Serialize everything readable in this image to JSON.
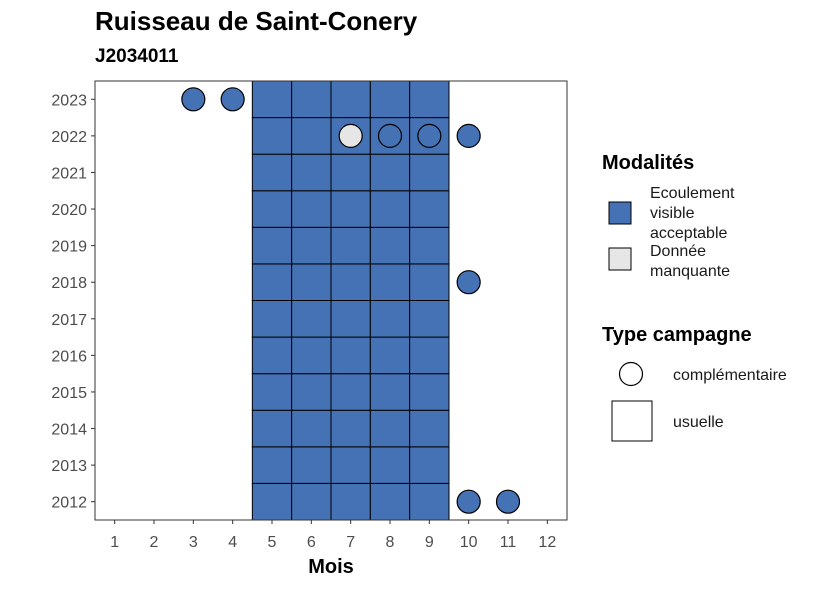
{
  "title": "Ruisseau de Saint-Conery",
  "subtitle": "J2034011",
  "chart_data": {
    "type": "heatmap",
    "xlabel": "Mois",
    "ylabel": "",
    "x_ticks": [
      1,
      2,
      3,
      4,
      5,
      6,
      7,
      8,
      9,
      10,
      11,
      12
    ],
    "y_ticks": [
      2012,
      2013,
      2014,
      2015,
      2016,
      2017,
      2018,
      2019,
      2020,
      2021,
      2022,
      2023
    ],
    "xlim": [
      0.5,
      12.5
    ],
    "ylim": [
      2011.5,
      2023.5
    ],
    "grid": false,
    "legend_position": "right",
    "colors": {
      "ecoulement": "#4472b4",
      "manquante": "#e6e6e6"
    },
    "usuelle": {
      "months": [
        5,
        6,
        7,
        8,
        9
      ],
      "years": [
        2012,
        2013,
        2014,
        2015,
        2016,
        2017,
        2018,
        2019,
        2020,
        2021,
        2022,
        2023
      ],
      "modalite": "Ecoulement visible acceptable"
    },
    "complementaire": [
      {
        "year": 2023,
        "month": 3,
        "modalite": "Ecoulement visible acceptable"
      },
      {
        "year": 2023,
        "month": 4,
        "modalite": "Ecoulement visible acceptable"
      },
      {
        "year": 2022,
        "month": 7,
        "modalite": "Donnée manquante"
      },
      {
        "year": 2022,
        "month": 8,
        "modalite": "Ecoulement visible acceptable"
      },
      {
        "year": 2022,
        "month": 9,
        "modalite": "Ecoulement visible acceptable"
      },
      {
        "year": 2022,
        "month": 10,
        "modalite": "Ecoulement visible acceptable"
      },
      {
        "year": 2018,
        "month": 10,
        "modalite": "Ecoulement visible acceptable"
      },
      {
        "year": 2012,
        "month": 10,
        "modalite": "Ecoulement visible acceptable"
      },
      {
        "year": 2012,
        "month": 11,
        "modalite": "Ecoulement visible acceptable"
      }
    ],
    "legend": {
      "modalites_title": "Modalités",
      "modalites": [
        {
          "lines": [
            "Ecoulement",
            "visible",
            "acceptable"
          ],
          "color": "#4472b4"
        },
        {
          "lines": [
            "Donnée",
            "manquante"
          ],
          "color": "#e6e6e6"
        }
      ],
      "type_title": "Type campagne",
      "types": [
        {
          "label": "complémentaire",
          "shape": "circle"
        },
        {
          "label": "usuelle",
          "shape": "square"
        }
      ]
    }
  }
}
